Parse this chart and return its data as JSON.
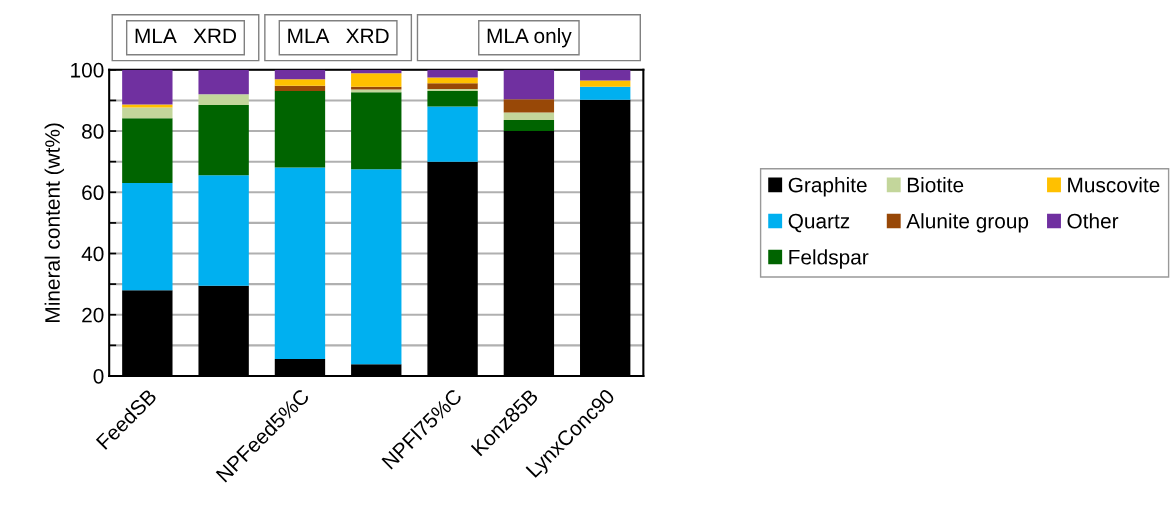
{
  "chart_data": {
    "type": "bar",
    "stacked": true,
    "ylabel": "Mineral content (wt%)",
    "categories": [
      "FeedSB",
      null,
      "NPFeed5%C",
      null,
      "NPFl75%C",
      "Konz85B",
      "LynxConc90"
    ],
    "series": [
      {
        "name": "Graphite",
        "color": "#000000",
        "values": [
          28,
          29.5,
          5.5,
          3.8,
          70,
          80,
          90.2
        ]
      },
      {
        "name": "Quartz",
        "color": "#00b0f0",
        "values": [
          35,
          36.1,
          62.6,
          63.7,
          18,
          0,
          4.3
        ]
      },
      {
        "name": "Feldspar",
        "color": "#006400",
        "values": [
          21.2,
          22.9,
          25,
          25.2,
          5.1,
          3.6,
          0
        ]
      },
      {
        "name": "Biotite",
        "color": "#c3d69b",
        "values": [
          3.5,
          3.5,
          0,
          0.9,
          0.6,
          2.5,
          0
        ]
      },
      {
        "name": "Alunite group",
        "color": "#984807",
        "values": [
          0,
          0,
          1.7,
          0.9,
          1.9,
          4.3,
          0
        ]
      },
      {
        "name": "Muscovite",
        "color": "#ffc000",
        "values": [
          1,
          0,
          2.1,
          4.4,
          1.9,
          0,
          2
        ]
      },
      {
        "name": "Other",
        "color": "#7030a0",
        "values": [
          11.3,
          8,
          3.1,
          1.1,
          2.5,
          9.6,
          3.5
        ]
      }
    ],
    "ylim": [
      0,
      100
    ],
    "yticks": [
      0,
      {
        "value": 10,
        "label": null
      },
      20,
      {
        "value": 30,
        "label": null
      },
      40,
      {
        "value": 50,
        "label": null
      },
      60,
      {
        "value": 70,
        "label": null
      },
      80,
      {
        "value": 90,
        "label": null
      },
      100
    ],
    "grid": "y",
    "legend": "right",
    "annotations": [
      "MLA   XRD",
      "MLA   XRD",
      "MLA only"
    ]
  }
}
